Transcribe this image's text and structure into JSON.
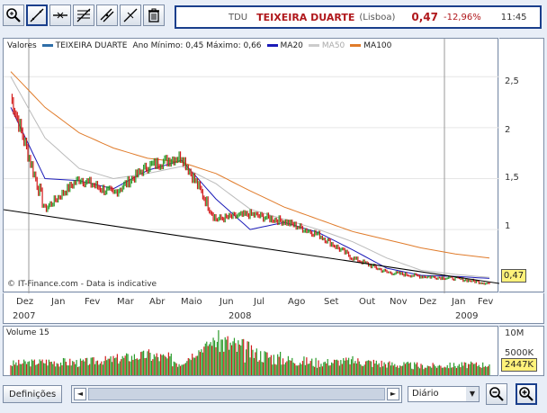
{
  "toolbar": {
    "tools": [
      {
        "name": "zoom-tool",
        "icon": "magnifier-icon"
      },
      {
        "name": "trendline-tool",
        "icon": "trendline-icon"
      },
      {
        "name": "horizontal-line-tool",
        "icon": "horizontal-line-icon"
      },
      {
        "name": "fibonacci-tool",
        "icon": "fibonacci-icon"
      },
      {
        "name": "channel-tool",
        "icon": "channel-icon"
      },
      {
        "name": "parallel-tool",
        "icon": "parallel-lines-icon"
      },
      {
        "name": "delete-tool",
        "icon": "trash-icon"
      }
    ]
  },
  "quote": {
    "symbol": "TDU",
    "name": "TEIXEIRA DUARTE",
    "market": "(Lisboa)",
    "price": "0,47",
    "change": "-12,96%",
    "time": "11:45"
  },
  "legend": {
    "values_label": "Valores",
    "series_name": "TEIXEIRA DUARTE",
    "range_text": "Ano Mínimo: 0,45 Máximo: 0,66",
    "ma20": "MA20",
    "ma50": "MA50",
    "ma100": "MA100"
  },
  "source_note": "© IT-Finance.com - Data is indicative",
  "y_ticks": [
    "2,5",
    "2",
    "1,5",
    "1"
  ],
  "price_badge": "0,47",
  "x_months": [
    "Dez",
    "Jan",
    "Fev",
    "Mar",
    "Abr",
    "Maio",
    "Jun",
    "Jul",
    "Ago",
    "Set",
    "Out",
    "Nov",
    "Dez",
    "Jan",
    "Fev"
  ],
  "x_years": [
    "2007",
    "2008",
    "2009"
  ],
  "volume": {
    "label": "Volume 15",
    "ticks": [
      "10M",
      "5000K"
    ],
    "badge": "2447K"
  },
  "bottom": {
    "settings_label": "Definições",
    "period_value": "Diário",
    "scroll_left": "◄",
    "scroll_right": "►",
    "select_arrow": "▼"
  },
  "colors": {
    "price_green": "#2a9a2a",
    "price_red": "#d21a1a",
    "ma20": "#1b1bb8",
    "ma50": "#bbbbbb",
    "ma100": "#e07b2a",
    "trend": "#000000",
    "accent": "#1a3f8c"
  },
  "chart_data": {
    "type": "line",
    "title": "TEIXEIRA DUARTE",
    "ylim": [
      0.4,
      2.75
    ],
    "x": [
      "Dez 2007",
      "Jan 2008",
      "Fev",
      "Mar",
      "Abr",
      "Maio",
      "Jun",
      "Jul",
      "Ago",
      "Set",
      "Out",
      "Nov",
      "Dez",
      "Jan 2009",
      "Fev"
    ],
    "series": [
      {
        "name": "TEIXEIRA DUARTE",
        "values": [
          2.3,
          1.2,
          1.5,
          1.35,
          1.62,
          1.72,
          1.1,
          1.15,
          1.08,
          0.95,
          0.72,
          0.58,
          0.54,
          0.52,
          0.47
        ]
      },
      {
        "name": "MA20",
        "values": [
          2.2,
          1.5,
          1.48,
          1.4,
          1.58,
          1.68,
          1.3,
          1.0,
          1.07,
          0.97,
          0.8,
          0.62,
          0.55,
          0.54,
          0.52
        ]
      },
      {
        "name": "MA50",
        "values": [
          2.5,
          1.9,
          1.6,
          1.5,
          1.55,
          1.62,
          1.45,
          1.2,
          1.1,
          1.0,
          0.88,
          0.72,
          0.6,
          0.56,
          0.53
        ]
      },
      {
        "name": "MA100",
        "values": [
          2.55,
          2.2,
          1.95,
          1.8,
          1.7,
          1.66,
          1.55,
          1.38,
          1.22,
          1.1,
          0.98,
          0.9,
          0.82,
          0.76,
          0.72
        ]
      }
    ],
    "volume": [
      2.5,
      3.0,
      2.8,
      3.5,
      4.5,
      3.0,
      8.0,
      5.0,
      3.5,
      2.8,
      3.2,
      2.5,
      2.0,
      2.2,
      2.4
    ]
  }
}
